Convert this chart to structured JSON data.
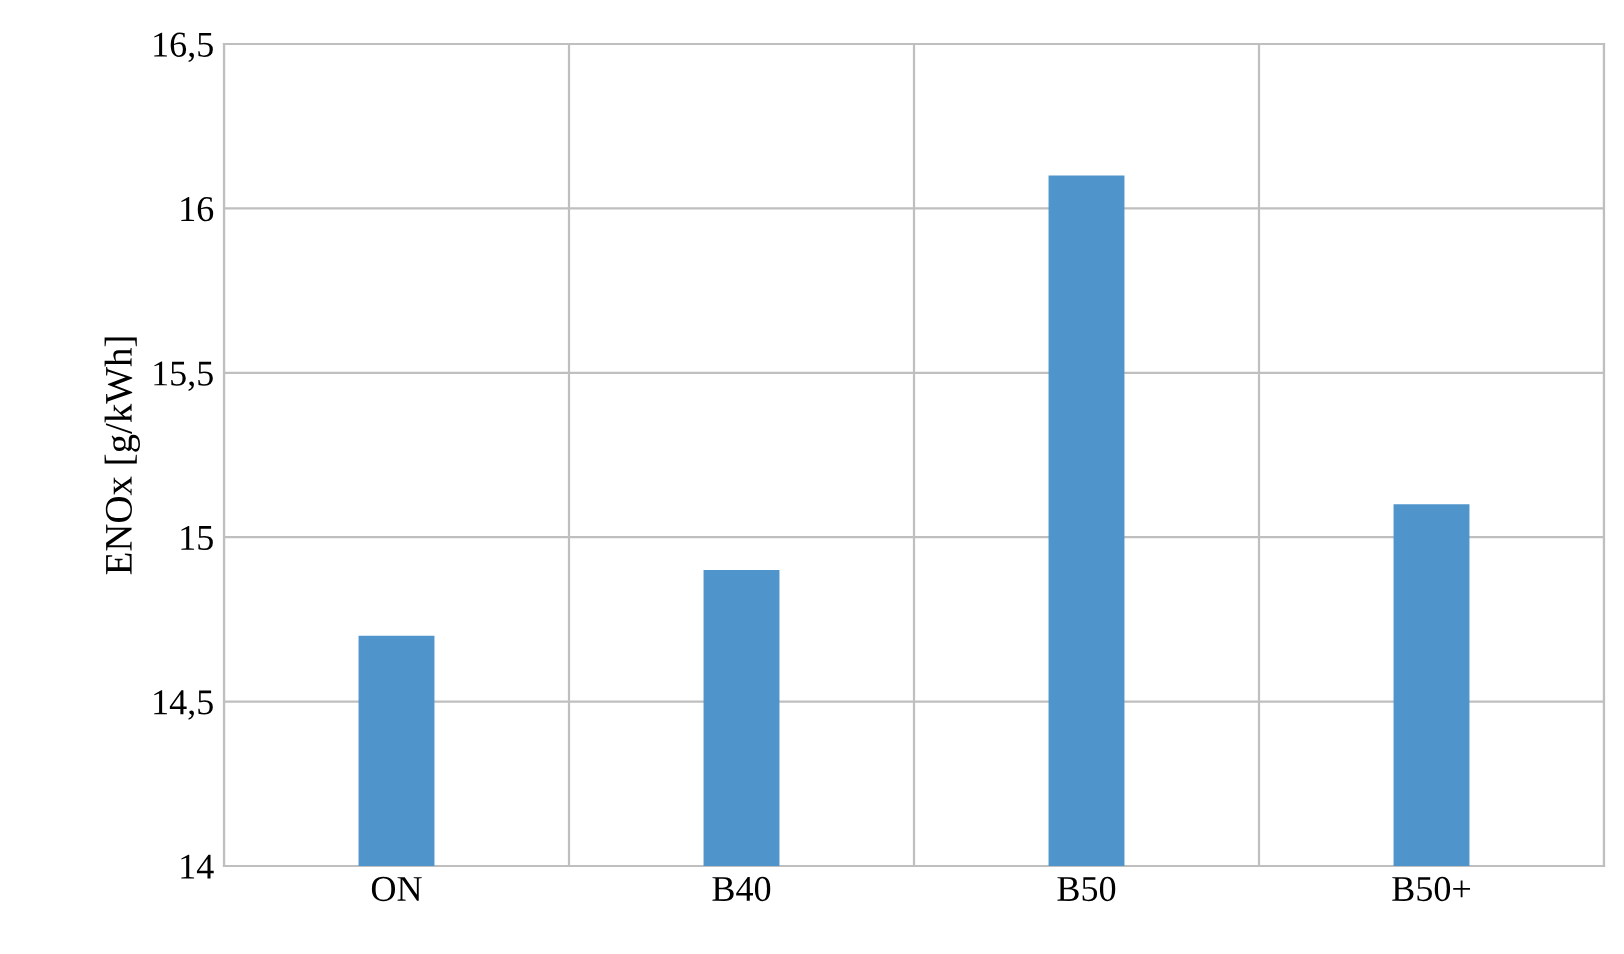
{
  "chart_data": {
    "type": "bar",
    "ylabel": "ENOx [g/kWh]",
    "categories": [
      "ON",
      "B40",
      "B50",
      "B50+"
    ],
    "values": [
      14.7,
      14.9,
      16.1,
      15.1
    ],
    "color": "#4f94cb",
    "ylim": [
      14,
      16.5
    ],
    "yticks": [
      14,
      {
        "value": 14.5,
        "label": "14,5"
      },
      15,
      {
        "value": 15.5,
        "label": "15,5"
      },
      16,
      {
        "value": 16.5,
        "label": "16,5"
      }
    ],
    "grid": true
  }
}
